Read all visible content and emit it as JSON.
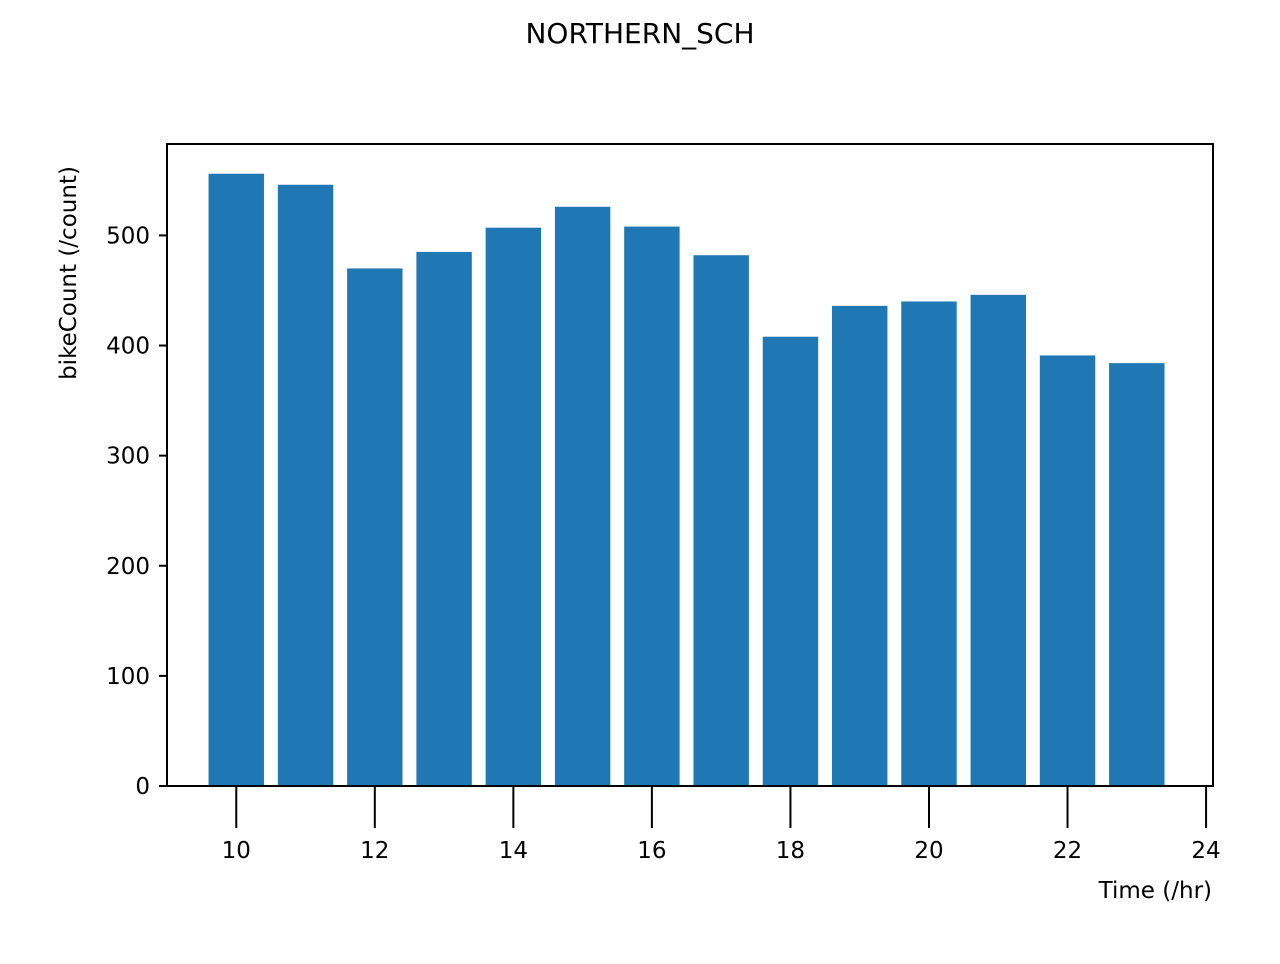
{
  "chart_data": {
    "type": "bar",
    "title": "NORTHERN_SCH",
    "xlabel": "Time (/hr)",
    "ylabel": "bikeCount (/count)",
    "x": [
      10,
      11,
      12,
      13,
      14,
      15,
      16,
      17,
      18,
      19,
      20,
      21,
      22,
      23
    ],
    "values": [
      556,
      546,
      470,
      485,
      507,
      526,
      508,
      482,
      408,
      436,
      440,
      446,
      391,
      384
    ],
    "xlim": [
      9,
      24.1
    ],
    "ylim": [
      0,
      583
    ],
    "xticks": [
      10,
      12,
      14,
      16,
      18,
      20,
      22,
      24
    ],
    "xtick_labels": [
      "10",
      "12",
      "14",
      "16",
      "18",
      "20",
      "22",
      "24"
    ],
    "yticks": [
      0,
      100,
      200,
      300,
      400,
      500
    ],
    "ytick_labels": [
      "0",
      "100",
      "200",
      "300",
      "400",
      "500"
    ],
    "bar_width": 0.8,
    "bar_color": "#1f77b4",
    "grid": false,
    "legend": "none"
  }
}
